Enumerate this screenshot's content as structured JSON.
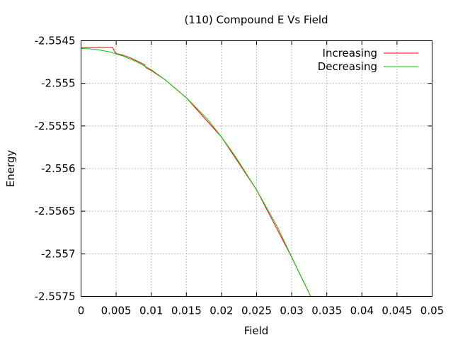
{
  "chart_data": {
    "type": "line",
    "title": "(110) Compound E Vs Field",
    "xlabel": "Field",
    "ylabel": "Energy",
    "xlim": [
      0,
      0.05
    ],
    "ylim": [
      -2.5575,
      -2.5545
    ],
    "x_ticks": [
      0,
      0.005,
      0.01,
      0.015,
      0.02,
      0.025,
      0.03,
      0.035,
      0.04,
      0.045,
      0.05
    ],
    "x_tick_labels": [
      "0",
      "0.005",
      "0.01",
      "0.015",
      "0.02",
      "0.025",
      "0.03",
      "0.035",
      "0.04",
      "0.045",
      "0.05"
    ],
    "y_ticks": [
      -2.5545,
      -2.555,
      -2.5555,
      -2.556,
      -2.5565,
      -2.557,
      -2.5575
    ],
    "y_tick_labels": [
      "-2.5545",
      "-2.555",
      "-2.5555",
      "-2.556",
      "-2.5565",
      "-2.557",
      "-2.5575"
    ],
    "grid": true,
    "legend_position": "top-right",
    "series": [
      {
        "name": "Increasing",
        "color": "#ff0000",
        "points": [
          [
            0,
            -2.55458
          ],
          [
            0.001,
            -2.55458
          ],
          [
            0.002,
            -2.55458
          ],
          [
            0.003,
            -2.55458
          ],
          [
            0.004,
            -2.55458
          ],
          [
            0.0045,
            -2.55458
          ],
          [
            0.0048,
            -2.55463
          ],
          [
            0.005,
            -2.55465
          ],
          [
            0.006,
            -2.55467
          ],
          [
            0.007,
            -2.5547
          ],
          [
            0.008,
            -2.55474
          ],
          [
            0.009,
            -2.55478
          ],
          [
            0.0092,
            -2.55481
          ],
          [
            0.0093,
            -2.55482
          ],
          [
            0.01,
            -2.55485
          ],
          [
            0.012,
            -2.55496
          ],
          [
            0.015,
            -2.55517
          ],
          [
            0.02,
            -2.55563
          ],
          [
            0.025,
            -2.55625
          ],
          [
            0.03,
            -2.55704
          ],
          [
            0.033,
            -2.55755
          ]
        ]
      },
      {
        "name": "Decreasing",
        "color": "#00cc00",
        "points": [
          [
            0,
            -2.55459
          ],
          [
            0.002,
            -2.5546
          ],
          [
            0.004,
            -2.55463
          ],
          [
            0.006,
            -2.55468
          ],
          [
            0.008,
            -2.55475
          ],
          [
            0.01,
            -2.55484
          ],
          [
            0.012,
            -2.55496
          ],
          [
            0.015,
            -2.55517
          ],
          [
            0.018,
            -2.55542
          ],
          [
            0.02,
            -2.55563
          ],
          [
            0.022,
            -2.55586
          ],
          [
            0.025,
            -2.55625
          ],
          [
            0.028,
            -2.55669
          ],
          [
            0.03,
            -2.55704
          ],
          [
            0.032,
            -2.55738
          ],
          [
            0.033,
            -2.55755
          ]
        ]
      }
    ]
  }
}
